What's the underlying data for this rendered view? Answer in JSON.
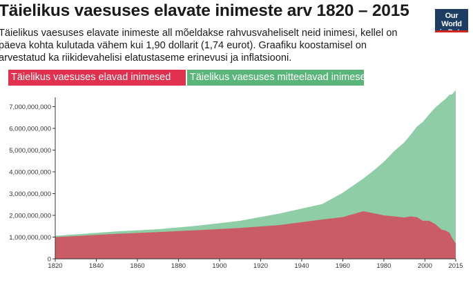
{
  "title": "Täielikus vaesuses elavate inimeste arv 1820 – 2015",
  "subtitle": "Täielikus vaesuses elavate inimeste all mõeldakse rahvusvaheliselt neid inimesi, kellel on päeva kohta kulutada vähem kui 1,90 dollarit (1,74 eurot). Graafiku koostamisel on arvestatud ka riikidevahelisi elatustaseme erinevusi ja inflatsiooni.",
  "logo": {
    "line1": "Our World",
    "line2": "in Data"
  },
  "colors": {
    "poverty": "#e2304f",
    "non_poverty": "#59b57a",
    "axis": "#333333"
  },
  "chart_data": {
    "type": "area",
    "stacked": true,
    "x": [
      1820,
      1850,
      1870,
      1890,
      1910,
      1929,
      1950,
      1960,
      1970,
      1975,
      1980,
      1985,
      1990,
      1993,
      1996,
      1999,
      2002,
      2005,
      2008,
      2010,
      2012,
      2013,
      2015
    ],
    "series": [
      {
        "name": "Täielikus vaesuses elavad inimesed",
        "color": "#e2304f",
        "values": [
          1000000000,
          1150000000,
          1230000000,
          1320000000,
          1420000000,
          1550000000,
          1810000000,
          1920000000,
          2190000000,
          2100000000,
          2000000000,
          1950000000,
          1900000000,
          1950000000,
          1920000000,
          1750000000,
          1750000000,
          1600000000,
          1350000000,
          1300000000,
          1200000000,
          1000000000,
          700000000
        ]
      },
      {
        "name": "Täielikus vaesuses mitteelavad inimesed",
        "color": "#59b57a",
        "values": [
          60000000,
          110000000,
          130000000,
          210000000,
          330000000,
          530000000,
          710000000,
          1120000000,
          1500000000,
          1960000000,
          2460000000,
          3000000000,
          3460000000,
          3750000000,
          4150000000,
          4550000000,
          4890000000,
          5350000000,
          5850000000,
          6050000000,
          6350000000,
          6550000000,
          7050000000
        ]
      }
    ],
    "xlim": [
      1820,
      2015
    ],
    "ylim": [
      0,
      7300000000
    ],
    "xticks": [
      1820,
      1840,
      1860,
      1880,
      1900,
      1920,
      1940,
      1960,
      1980,
      2000,
      2015
    ],
    "xtick_labels": [
      "1820",
      "1840",
      "1860",
      "1880",
      "1900",
      "1920",
      "1940",
      "1960",
      "1980",
      "2000",
      "2015"
    ],
    "yticks": [
      0,
      1000000000,
      2000000000,
      3000000000,
      4000000000,
      5000000000,
      6000000000,
      7000000000
    ],
    "ytick_labels": [
      "0",
      "1,000,000,000",
      "2,000,000,000",
      "3,000,000,000",
      "4,000,000,000",
      "5,000,000,000",
      "6,000,000,000",
      "7,000,000,000"
    ],
    "legend_position": "top"
  }
}
